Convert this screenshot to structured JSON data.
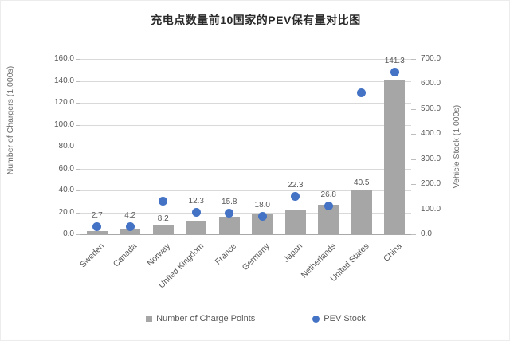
{
  "title": "充电点数量前10国家的PEV保有量对比图",
  "chart_data": {
    "type": "bar",
    "subtype": "combo-bar-scatter",
    "categories": [
      "Sweden",
      "Canada",
      "Norway",
      "United Kingdom",
      "France",
      "Germany",
      "Japan",
      "Netherlands",
      "United States",
      "China"
    ],
    "series": [
      {
        "name": "Number of Charge Points",
        "type": "bar",
        "axis": "left",
        "color": "#a6a6a6",
        "values": [
          2.7,
          4.2,
          8.2,
          12.3,
          15.8,
          18.0,
          22.3,
          26.8,
          40.5,
          141.3
        ],
        "data_labels": [
          "2.7",
          "4.2",
          "8.2",
          "12.3",
          "15.8",
          "18.0",
          "22.3",
          "26.8",
          "40.5",
          "141.3"
        ]
      },
      {
        "name": "PEV Stock",
        "type": "scatter",
        "axis": "right",
        "color": "#4472c4",
        "values": [
          30,
          30,
          132,
          86,
          85,
          72,
          150,
          112,
          565,
          648
        ]
      }
    ],
    "left_axis": {
      "title": "Number of Chargers (1,000s)",
      "min": 0,
      "max": 160,
      "step": 20,
      "tick_labels": [
        "0.0",
        "20.0",
        "40.0",
        "60.0",
        "80.0",
        "100.0",
        "120.0",
        "140.0",
        "160.0"
      ]
    },
    "right_axis": {
      "title": "Vehicle Stock (1,000s)",
      "min": 0,
      "max": 700,
      "step": 100,
      "tick_labels": [
        "0.0",
        "100.0",
        "200.0",
        "300.0",
        "400.0",
        "500.0",
        "600.0",
        "700.0"
      ]
    },
    "grid": true,
    "legend_position": "bottom",
    "legend": [
      {
        "label": "Number of Charge Points",
        "marker": "square",
        "color": "#a6a6a6"
      },
      {
        "label": "PEV Stock",
        "marker": "circle",
        "color": "#4472c4"
      }
    ]
  }
}
